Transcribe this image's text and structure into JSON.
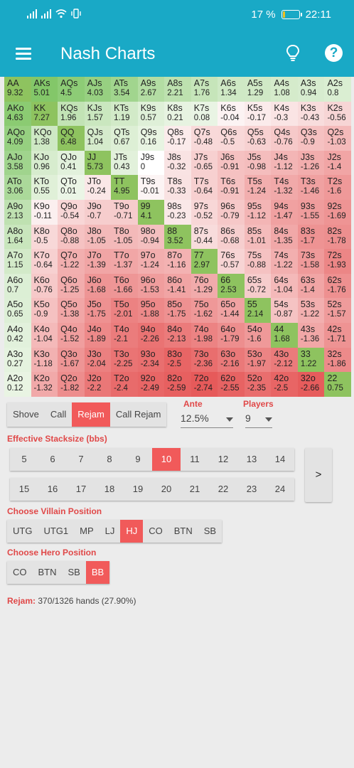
{
  "status": {
    "battery": "17 %",
    "time": "22:11",
    "battery_level": 0.17
  },
  "app": {
    "title": "Nash Charts"
  },
  "colors": {
    "accent": "#19a9c6",
    "selected": "#f15a5a",
    "positive": "#7fbb52",
    "negative": "#e85c5c"
  },
  "grid": {
    "rows": [
      [
        [
          "AA",
          "9.32"
        ],
        [
          "AKs",
          "5.01"
        ],
        [
          "AQs",
          "4.5"
        ],
        [
          "AJs",
          "4.03"
        ],
        [
          "ATs",
          "3.54"
        ],
        [
          "A9s",
          "2.67"
        ],
        [
          "A8s",
          "2.21"
        ],
        [
          "A7s",
          "1.76"
        ],
        [
          "A6s",
          "1.34"
        ],
        [
          "A5s",
          "1.29"
        ],
        [
          "A4s",
          "1.08"
        ],
        [
          "A3s",
          "0.94"
        ],
        [
          "A2s",
          "0.8"
        ]
      ],
      [
        [
          "AKo",
          "4.63"
        ],
        [
          "KK",
          "7.27"
        ],
        [
          "KQs",
          "1.96"
        ],
        [
          "KJs",
          "1.57"
        ],
        [
          "KTs",
          "1.19"
        ],
        [
          "K9s",
          "0.57"
        ],
        [
          "K8s",
          "0.21"
        ],
        [
          "K7s",
          "0.08"
        ],
        [
          "K6s",
          "-0.04"
        ],
        [
          "K5s",
          "-0.17"
        ],
        [
          "K4s",
          "-0.3"
        ],
        [
          "K3s",
          "-0.43"
        ],
        [
          "K2s",
          "-0.56"
        ]
      ],
      [
        [
          "AQo",
          "4.09"
        ],
        [
          "KQo",
          "1.38"
        ],
        [
          "QQ",
          "6.48"
        ],
        [
          "QJs",
          "1.04"
        ],
        [
          "QTs",
          "0.67"
        ],
        [
          "Q9s",
          "0.16"
        ],
        [
          "Q8s",
          "-0.17"
        ],
        [
          "Q7s",
          "-0.48"
        ],
        [
          "Q6s",
          "-0.5"
        ],
        [
          "Q5s",
          "-0.63"
        ],
        [
          "Q4s",
          "-0.76"
        ],
        [
          "Q3s",
          "-0.9"
        ],
        [
          "Q2s",
          "-1.03"
        ]
      ],
      [
        [
          "AJo",
          "3.58"
        ],
        [
          "KJo",
          "0.96"
        ],
        [
          "QJo",
          "0.41"
        ],
        [
          "JJ",
          "5.73"
        ],
        [
          "JTs",
          "0.43"
        ],
        [
          "J9s",
          "0"
        ],
        [
          "J8s",
          "-0.32"
        ],
        [
          "J7s",
          "-0.65"
        ],
        [
          "J6s",
          "-0.91"
        ],
        [
          "J5s",
          "-0.98"
        ],
        [
          "J4s",
          "-1.12"
        ],
        [
          "J3s",
          "-1.26"
        ],
        [
          "J2s",
          "-1.4"
        ]
      ],
      [
        [
          "ATo",
          "3.06"
        ],
        [
          "KTo",
          "0.55"
        ],
        [
          "QTo",
          "0.01"
        ],
        [
          "JTo",
          "-0.24"
        ],
        [
          "TT",
          "4.95"
        ],
        [
          "T9s",
          "-0.01"
        ],
        [
          "T8s",
          "-0.33"
        ],
        [
          "T7s",
          "-0.64"
        ],
        [
          "T6s",
          "-0.91"
        ],
        [
          "T5s",
          "-1.24"
        ],
        [
          "T4s",
          "-1.32"
        ],
        [
          "T3s",
          "-1.46"
        ],
        [
          "T2s",
          "-1.6"
        ]
      ],
      [
        [
          "A9o",
          "2.13"
        ],
        [
          "K9o",
          "-0.11"
        ],
        [
          "Q9o",
          "-0.54"
        ],
        [
          "J9o",
          "-0.7"
        ],
        [
          "T9o",
          "-0.71"
        ],
        [
          "99",
          "4.1"
        ],
        [
          "98s",
          "-0.23"
        ],
        [
          "97s",
          "-0.52"
        ],
        [
          "96s",
          "-0.79"
        ],
        [
          "95s",
          "-1.12"
        ],
        [
          "94s",
          "-1.47"
        ],
        [
          "93s",
          "-1.55"
        ],
        [
          "92s",
          "-1.69"
        ]
      ],
      [
        [
          "A8o",
          "1.64"
        ],
        [
          "K8o",
          "-0.5"
        ],
        [
          "Q8o",
          "-0.88"
        ],
        [
          "J8o",
          "-1.05"
        ],
        [
          "T8o",
          "-1.05"
        ],
        [
          "98o",
          "-0.94"
        ],
        [
          "88",
          "3.52"
        ],
        [
          "87s",
          "-0.44"
        ],
        [
          "86s",
          "-0.68"
        ],
        [
          "85s",
          "-1.01"
        ],
        [
          "84s",
          "-1.35"
        ],
        [
          "83s",
          "-1.7"
        ],
        [
          "82s",
          "-1.78"
        ]
      ],
      [
        [
          "A7o",
          "1.15"
        ],
        [
          "K7o",
          "-0.64"
        ],
        [
          "Q7o",
          "-1.22"
        ],
        [
          "J7o",
          "-1.39"
        ],
        [
          "T7o",
          "-1.37"
        ],
        [
          "97o",
          "-1.24"
        ],
        [
          "87o",
          "-1.16"
        ],
        [
          "77",
          "2.97"
        ],
        [
          "76s",
          "-0.57"
        ],
        [
          "75s",
          "-0.88"
        ],
        [
          "74s",
          "-1.22"
        ],
        [
          "73s",
          "-1.58"
        ],
        [
          "72s",
          "-1.93"
        ]
      ],
      [
        [
          "A6o",
          "0.7"
        ],
        [
          "K6o",
          "-0.76"
        ],
        [
          "Q6o",
          "-1.25"
        ],
        [
          "J6o",
          "-1.68"
        ],
        [
          "T6o",
          "-1.66"
        ],
        [
          "96o",
          "-1.53"
        ],
        [
          "86o",
          "-1.41"
        ],
        [
          "76o",
          "-1.29"
        ],
        [
          "66",
          "2.53"
        ],
        [
          "65s",
          "-0.72"
        ],
        [
          "64s",
          "-1.04"
        ],
        [
          "63s",
          "-1.4"
        ],
        [
          "62s",
          "-1.76"
        ]
      ],
      [
        [
          "A5o",
          "0.65"
        ],
        [
          "K5o",
          "-0.9"
        ],
        [
          "Q5o",
          "-1.38"
        ],
        [
          "J5o",
          "-1.75"
        ],
        [
          "T5o",
          "-2.01"
        ],
        [
          "95o",
          "-1.88"
        ],
        [
          "85o",
          "-1.75"
        ],
        [
          "75o",
          "-1.62"
        ],
        [
          "65o",
          "-1.44"
        ],
        [
          "55",
          "2.14"
        ],
        [
          "54s",
          "-0.87"
        ],
        [
          "53s",
          "-1.22"
        ],
        [
          "52s",
          "-1.57"
        ]
      ],
      [
        [
          "A4o",
          "0.42"
        ],
        [
          "K4o",
          "-1.04"
        ],
        [
          "Q4o",
          "-1.52"
        ],
        [
          "J4o",
          "-1.89"
        ],
        [
          "T4o",
          "-2.1"
        ],
        [
          "94o",
          "-2.26"
        ],
        [
          "84o",
          "-2.13"
        ],
        [
          "74o",
          "-1.98"
        ],
        [
          "64o",
          "-1.79"
        ],
        [
          "54o",
          "-1.6"
        ],
        [
          "44",
          "1.68"
        ],
        [
          "43s",
          "-1.36"
        ],
        [
          "42s",
          "-1.71"
        ]
      ],
      [
        [
          "A3o",
          "0.27"
        ],
        [
          "K3o",
          "-1.18"
        ],
        [
          "Q3o",
          "-1.67"
        ],
        [
          "J3o",
          "-2.04"
        ],
        [
          "T3o",
          "-2.25"
        ],
        [
          "93o",
          "-2.34"
        ],
        [
          "83o",
          "-2.5"
        ],
        [
          "73o",
          "-2.36"
        ],
        [
          "63o",
          "-2.16"
        ],
        [
          "53o",
          "-1.97"
        ],
        [
          "43o",
          "-2.12"
        ],
        [
          "33",
          "1.22"
        ],
        [
          "32s",
          "-1.86"
        ]
      ],
      [
        [
          "A2o",
          "0.12"
        ],
        [
          "K2o",
          "-1.32"
        ],
        [
          "Q2o",
          "-1.82"
        ],
        [
          "J2o",
          "-2.2"
        ],
        [
          "T2o",
          "-2.4"
        ],
        [
          "92o",
          "-2.49"
        ],
        [
          "82o",
          "-2.59"
        ],
        [
          "72o",
          "-2.74"
        ],
        [
          "62o",
          "-2.55"
        ],
        [
          "52o",
          "-2.35"
        ],
        [
          "42o",
          "-2.5"
        ],
        [
          "32o",
          "-2.66"
        ],
        [
          "22",
          "0.75"
        ]
      ]
    ]
  },
  "actions": {
    "items": [
      "Shove",
      "Call",
      "Rejam",
      "Call Rejam"
    ],
    "selected": "Rejam"
  },
  "ante": {
    "label": "Ante",
    "value": "12.5%"
  },
  "players": {
    "label": "Players",
    "value": "9"
  },
  "stacksize": {
    "label": "Effective Stacksize (bbs)",
    "row1": [
      "5",
      "6",
      "7",
      "8",
      "9",
      "10",
      "11",
      "12",
      "13",
      "14"
    ],
    "row2": [
      "15",
      "16",
      "17",
      "18",
      "19",
      "20",
      "21",
      "22",
      "23",
      "24"
    ],
    "selected": "10",
    "next_label": ">"
  },
  "villain": {
    "label": "Choose Villain Position",
    "items": [
      "UTG",
      "UTG1",
      "MP",
      "LJ",
      "HJ",
      "CO",
      "BTN",
      "SB"
    ],
    "selected": "HJ"
  },
  "hero": {
    "label": "Choose Hero Position",
    "items": [
      "CO",
      "BTN",
      "SB",
      "BB"
    ],
    "selected": "BB"
  },
  "result": {
    "label": "Rejam:",
    "text": "370/1326 hands (27.90%)"
  }
}
